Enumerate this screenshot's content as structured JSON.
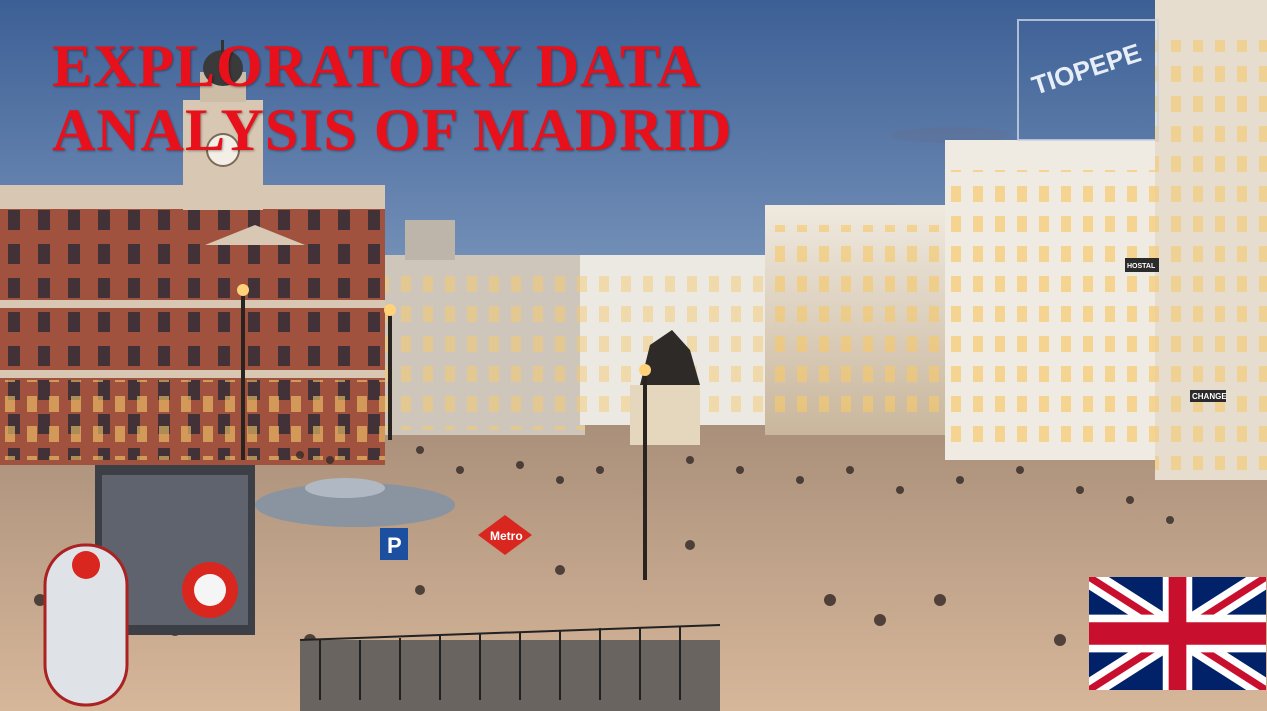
{
  "title": {
    "line1": "EXPLORATORY DATA",
    "line2": "ANALYSIS OF MADRID",
    "color": "#e8101a"
  },
  "photo": {
    "description_icon": "puerta-del-sol-photo",
    "signs": {
      "rooftop_sign": "TIOPEPE",
      "metro_sign": "Metro",
      "parking_sign": "P",
      "hostal_sign": "HOSTAL",
      "change_sign": "CHANGE"
    },
    "colors": {
      "sky_top": "#3c5f95",
      "sky_bottom": "#b9c8dc",
      "plaza": "#c9a98a",
      "building_light": "#e9e3d8",
      "building_brick": "#9c4a3a"
    }
  },
  "flag": {
    "icon": "uk-flag-icon",
    "colors": {
      "blue": "#012169",
      "red": "#c8102e",
      "white": "#ffffff"
    }
  }
}
